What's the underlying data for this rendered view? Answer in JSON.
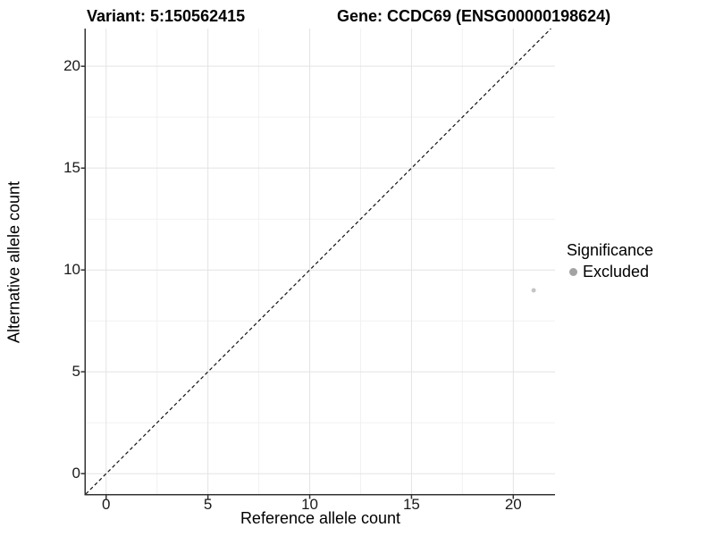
{
  "titles": {
    "variant": "Variant: 5:150562415",
    "gene": "Gene: CCDC69 (ENSG00000198624)"
  },
  "legend": {
    "title": "Significance",
    "items": [
      {
        "label": "Excluded",
        "color": "#a3a3a3"
      }
    ]
  },
  "chart_data": {
    "type": "scatter",
    "title": "Variant: 5:150562415 — Gene: CCDC69 (ENSG00000198624)",
    "xlabel": "Reference allele count",
    "ylabel": "Alternative allele count",
    "xlim": [
      -1,
      22.05
    ],
    "ylim": [
      -1,
      21.85
    ],
    "xticks": [
      0,
      5,
      10,
      15,
      20
    ],
    "yticks": [
      0,
      5,
      10,
      15,
      20
    ],
    "minor_step": 2.5,
    "grid": true,
    "legend_position": "right",
    "series": [
      {
        "name": "Excluded",
        "color": "#c5c5c5",
        "points": [
          {
            "x": 21,
            "y": 9
          }
        ]
      }
    ],
    "point_radius": 2.5,
    "reference_line": {
      "type": "identity",
      "slope": 1,
      "intercept": 0,
      "style": "dashed",
      "color": "#111111"
    },
    "colors": {
      "grid_major": "#e3e3e3",
      "grid_minor": "#f1f1f1",
      "axis_line": "#333333",
      "tick_mark": "#333333"
    }
  }
}
